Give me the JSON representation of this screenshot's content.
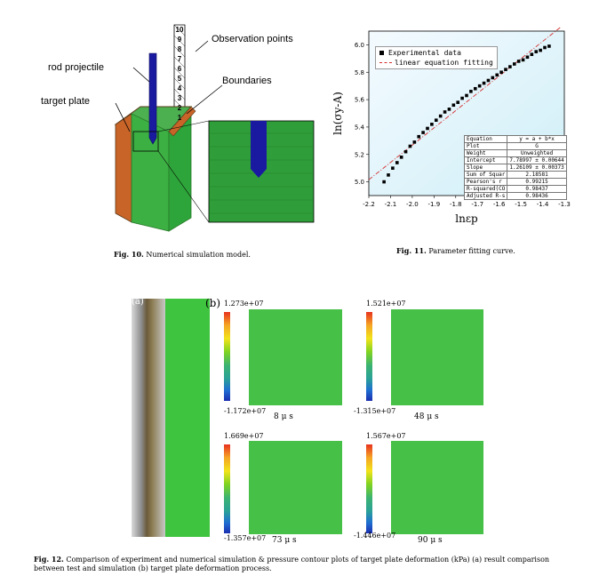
{
  "fig10": {
    "labels": {
      "observation": "Observation points",
      "rod": "rod projectile",
      "boundaries": "Boundaries",
      "target": "target plate"
    },
    "numbers": [
      "10",
      "9",
      "8",
      "7",
      "6",
      "5",
      "4",
      "3",
      "2",
      "1"
    ],
    "caption_num": "Fig. 10.",
    "caption_text": "Numerical simulation model."
  },
  "fig11": {
    "caption_num": "Fig. 11.",
    "caption_text": "Parameter fitting curve.",
    "legend": [
      "Experimental data",
      "linear equation fitting"
    ],
    "table": [
      [
        "Equation",
        "y = a + b*x"
      ],
      [
        "Plot",
        "G"
      ],
      [
        "Weight",
        "Unweighted"
      ],
      [
        "Intercept",
        "7.78997 ± 0.00644"
      ],
      [
        "Slope",
        "1.26109 ± 0.00373"
      ],
      [
        "Sum of Squar",
        "2.18581"
      ],
      [
        "Pearson's r",
        "0.99215"
      ],
      [
        "R-squared(CO",
        "0.98437"
      ],
      [
        "Adjusted R-s",
        "0.98436"
      ]
    ],
    "chart_data": {
      "type": "scatter",
      "xlabel": "lnε_p",
      "ylabel": "ln(σ_y-A)",
      "xlim": [
        -2.2,
        -1.3
      ],
      "ylim": [
        4.9,
        6.1
      ],
      "xticks": [
        "-2.2",
        "-2.1",
        "-2.0",
        "-1.9",
        "-1.8",
        "-1.7",
        "-1.6",
        "-1.5",
        "-1.4",
        "-1.3"
      ],
      "yticks": [
        "5.0",
        "5.2",
        "5.4",
        "5.6",
        "5.8",
        "6.0"
      ],
      "series": [
        {
          "name": "Experimental data",
          "x": [
            -2.13,
            -2.11,
            -2.09,
            -2.07,
            -2.05,
            -2.03,
            -2.01,
            -1.99,
            -1.97,
            -1.95,
            -1.93,
            -1.91,
            -1.89,
            -1.87,
            -1.85,
            -1.83,
            -1.81,
            -1.79,
            -1.77,
            -1.75,
            -1.73,
            -1.71,
            -1.69,
            -1.67,
            -1.65,
            -1.63,
            -1.61,
            -1.59,
            -1.57,
            -1.55,
            -1.53,
            -1.51,
            -1.49,
            -1.47,
            -1.45,
            -1.43,
            -1.41,
            -1.39,
            -1.37
          ],
          "y": [
            5.0,
            5.05,
            5.1,
            5.14,
            5.18,
            5.22,
            5.26,
            5.29,
            5.33,
            5.36,
            5.39,
            5.42,
            5.45,
            5.48,
            5.51,
            5.53,
            5.56,
            5.58,
            5.61,
            5.63,
            5.66,
            5.68,
            5.7,
            5.72,
            5.74,
            5.76,
            5.78,
            5.8,
            5.82,
            5.84,
            5.86,
            5.88,
            5.89,
            5.91,
            5.93,
            5.95,
            5.96,
            5.98,
            5.99
          ]
        },
        {
          "name": "linear equation fitting",
          "intercept": 7.78997,
          "slope": 1.26109
        }
      ]
    }
  },
  "fig12": {
    "panel_a": "(a)",
    "panel_b": "(b)",
    "frames": [
      {
        "max": "1.273e+07",
        "min": "-1.172e+07",
        "time": "8 μ s"
      },
      {
        "max": "1.521e+07",
        "min": "-1.315e+07",
        "time": "48 μ s"
      },
      {
        "max": "1.669e+07",
        "min": "-1.357e+07",
        "time": "73 μ s"
      },
      {
        "max": "1.567e+07",
        "min": "-1.446e+07",
        "time": "90 μ s"
      }
    ],
    "colorbar": [
      "#e8321e",
      "#f5a623",
      "#f2e31a",
      "#7ed321",
      "#3cb371",
      "#2aa198",
      "#1f6fd1",
      "#1a2fb0"
    ],
    "caption_num": "Fig. 12.",
    "caption_text": "Comparison of experiment and numerical simulation & pressure contour plots of target plate deformation (kPa) (a) result comparison between test and simulation (b) target plate deformation process."
  }
}
